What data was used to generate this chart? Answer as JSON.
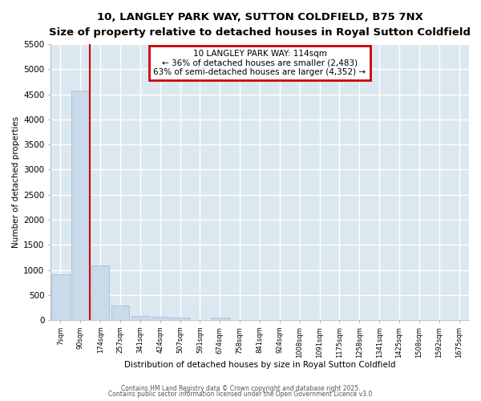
{
  "title": "10, LANGLEY PARK WAY, SUTTON COLDFIELD, B75 7NX",
  "subtitle": "Size of property relative to detached houses in Royal Sutton Coldfield",
  "xlabel": "Distribution of detached houses by size in Royal Sutton Coldfield",
  "ylabel": "Number of detached properties",
  "bar_color": "#c9daea",
  "bar_edge_color": "#9bbcd4",
  "background_color": "#dce8f0",
  "grid_color": "#ffffff",
  "annotation_box_color": "#cc0000",
  "vline_color": "#cc0000",
  "fig_background": "#ffffff",
  "categories": [
    "7sqm",
    "90sqm",
    "174sqm",
    "257sqm",
    "341sqm",
    "424sqm",
    "507sqm",
    "591sqm",
    "674sqm",
    "758sqm",
    "841sqm",
    "924sqm",
    "1008sqm",
    "1091sqm",
    "1175sqm",
    "1258sqm",
    "1341sqm",
    "1425sqm",
    "1508sqm",
    "1592sqm",
    "1675sqm"
  ],
  "values": [
    920,
    4580,
    1085,
    295,
    80,
    60,
    55,
    0,
    55,
    0,
    0,
    0,
    0,
    0,
    0,
    0,
    0,
    0,
    0,
    0,
    0
  ],
  "annotation_line1": "10 LANGLEY PARK WAY: 114sqm",
  "annotation_line2": "← 36% of detached houses are smaller (2,483)",
  "annotation_line3": "63% of semi-detached houses are larger (4,352) →",
  "ylim": [
    0,
    5500
  ],
  "yticks": [
    0,
    500,
    1000,
    1500,
    2000,
    2500,
    3000,
    3500,
    4000,
    4500,
    5000,
    5500
  ],
  "footer_line1": "Contains HM Land Registry data © Crown copyright and database right 2025.",
  "footer_line2": "Contains public sector information licensed under the Open Government Licence v3.0"
}
